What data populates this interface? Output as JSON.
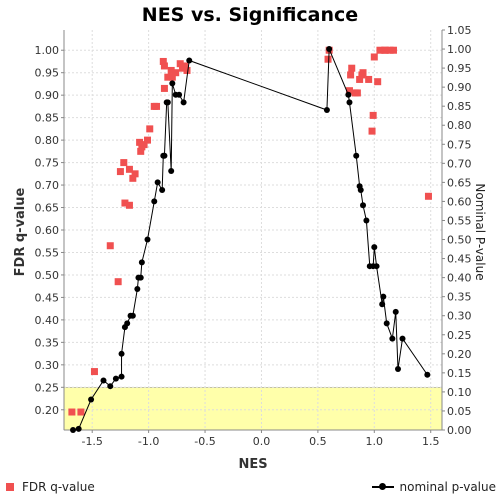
{
  "chart_data": {
    "type": "scatter",
    "title": "NES vs. Significance",
    "xlabel": "NES",
    "ylabel": "FDR q-value",
    "y2label": "Nominal P-value",
    "xlim": [
      -1.75,
      1.6
    ],
    "ylim": [
      0.155,
      1.045
    ],
    "y2lim": [
      0.0,
      1.05
    ],
    "grid": true,
    "legend_position": "bottom",
    "xticks": [
      "-1.5",
      "-1.0",
      "-0.5",
      "0.0",
      "0.5",
      "1.0",
      "1.5"
    ],
    "xtick_values": [
      -1.5,
      -1.0,
      -0.5,
      0.0,
      0.5,
      1.0,
      1.5
    ],
    "yticks": [
      "0.20",
      "0.25",
      "0.30",
      "0.35",
      "0.40",
      "0.45",
      "0.50",
      "0.55",
      "0.60",
      "0.65",
      "0.70",
      "0.75",
      "0.80",
      "0.85",
      "0.90",
      "0.95",
      "1.00"
    ],
    "ytick_values": [
      0.2,
      0.25,
      0.3,
      0.35,
      0.4,
      0.45,
      0.5,
      0.55,
      0.6,
      0.65,
      0.7,
      0.75,
      0.8,
      0.85,
      0.9,
      0.95,
      1.0
    ],
    "y2ticks": [
      "0.00",
      "0.05",
      "0.10",
      "0.15",
      "0.20",
      "0.25",
      "0.30",
      "0.35",
      "0.40",
      "0.45",
      "0.50",
      "0.55",
      "0.60",
      "0.65",
      "0.70",
      "0.75",
      "0.80",
      "0.85",
      "0.90",
      "0.95",
      "1.00",
      "1.05"
    ],
    "y2tick_values": [
      0.0,
      0.05,
      0.1,
      0.15,
      0.2,
      0.25,
      0.3,
      0.35,
      0.4,
      0.45,
      0.5,
      0.55,
      0.6,
      0.65,
      0.7,
      0.75,
      0.8,
      0.85,
      0.9,
      0.95,
      1.0,
      1.05
    ],
    "highlight_band": {
      "from": 0.155,
      "to": 0.25,
      "color": "#ffffaa"
    },
    "colors": {
      "fdr": "#f05050",
      "nominal": "#000000",
      "band": "#ffffaa",
      "grid": "#dddddd"
    },
    "series": [
      {
        "name": "FDR q-value",
        "axis": "left",
        "style": "squares",
        "points": [
          [
            -1.68,
            0.195
          ],
          [
            -1.6,
            0.195
          ],
          [
            -1.48,
            0.285
          ],
          [
            -1.34,
            0.565
          ],
          [
            -1.27,
            0.485
          ],
          [
            -1.25,
            0.73
          ],
          [
            -1.22,
            0.75
          ],
          [
            -1.21,
            0.66
          ],
          [
            -1.17,
            0.735
          ],
          [
            -1.17,
            0.655
          ],
          [
            -1.14,
            0.715
          ],
          [
            -1.12,
            0.725
          ],
          [
            -1.08,
            0.795
          ],
          [
            -1.07,
            0.775
          ],
          [
            -1.06,
            0.785
          ],
          [
            -1.04,
            0.79
          ],
          [
            -1.01,
            0.8
          ],
          [
            -0.99,
            0.825
          ],
          [
            -0.95,
            0.875
          ],
          [
            -0.93,
            0.875
          ],
          [
            -0.87,
            0.975
          ],
          [
            -0.86,
            0.965
          ],
          [
            -0.86,
            0.915
          ],
          [
            -0.83,
            0.94
          ],
          [
            -0.8,
            0.955
          ],
          [
            -0.79,
            0.94
          ],
          [
            -0.76,
            0.95
          ],
          [
            -0.72,
            0.97
          ],
          [
            -0.7,
            0.96
          ],
          [
            -0.68,
            0.965
          ],
          [
            -0.66,
            0.955
          ],
          [
            0.59,
            0.98
          ],
          [
            0.6,
            1.0
          ],
          [
            0.78,
            0.91
          ],
          [
            0.79,
            0.945
          ],
          [
            0.8,
            0.96
          ],
          [
            0.83,
            0.905
          ],
          [
            0.85,
            0.905
          ],
          [
            0.87,
            0.935
          ],
          [
            0.89,
            0.945
          ],
          [
            0.9,
            0.95
          ],
          [
            0.95,
            0.935
          ],
          [
            0.98,
            0.82
          ],
          [
            0.99,
            0.855
          ],
          [
            1.0,
            0.985
          ],
          [
            1.03,
            0.93
          ],
          [
            1.05,
            1.0
          ],
          [
            1.09,
            1.0
          ],
          [
            1.1,
            1.0
          ],
          [
            1.14,
            1.0
          ],
          [
            1.17,
            1.0
          ],
          [
            1.48,
            0.675
          ]
        ]
      },
      {
        "name": "nominal p-value",
        "axis": "right",
        "style": "line-markers",
        "points": [
          [
            -1.67,
            0.0
          ],
          [
            -1.62,
            0.003
          ],
          [
            -1.51,
            0.08
          ],
          [
            -1.4,
            0.13
          ],
          [
            -1.34,
            0.115
          ],
          [
            -1.29,
            0.135
          ],
          [
            -1.24,
            0.14
          ],
          [
            -1.24,
            0.2
          ],
          [
            -1.21,
            0.27
          ],
          [
            -1.19,
            0.28
          ],
          [
            -1.16,
            0.3
          ],
          [
            -1.14,
            0.3
          ],
          [
            -1.1,
            0.37
          ],
          [
            -1.09,
            0.4
          ],
          [
            -1.07,
            0.4
          ],
          [
            -1.06,
            0.44
          ],
          [
            -1.01,
            0.5
          ],
          [
            -0.95,
            0.6
          ],
          [
            -0.92,
            0.65
          ],
          [
            -0.88,
            0.63
          ],
          [
            -0.87,
            0.72
          ],
          [
            -0.86,
            0.72
          ],
          [
            -0.84,
            0.86
          ],
          [
            -0.83,
            0.86
          ],
          [
            -0.8,
            0.68
          ],
          [
            -0.79,
            0.91
          ],
          [
            -0.76,
            0.88
          ],
          [
            -0.73,
            0.88
          ],
          [
            -0.69,
            0.86
          ],
          [
            -0.64,
            0.97
          ],
          [
            0.58,
            0.84
          ],
          [
            0.6,
            1.0
          ],
          [
            0.77,
            0.88
          ],
          [
            0.78,
            0.86
          ],
          [
            0.84,
            0.72
          ],
          [
            0.87,
            0.64
          ],
          [
            0.88,
            0.63
          ],
          [
            0.9,
            0.59
          ],
          [
            0.93,
            0.55
          ],
          [
            0.96,
            0.43
          ],
          [
            0.99,
            0.43
          ],
          [
            1.0,
            0.48
          ],
          [
            1.02,
            0.43
          ],
          [
            1.07,
            0.33
          ],
          [
            1.08,
            0.35
          ],
          [
            1.11,
            0.28
          ],
          [
            1.16,
            0.24
          ],
          [
            1.19,
            0.31
          ],
          [
            1.21,
            0.16
          ],
          [
            1.25,
            0.24
          ],
          [
            1.47,
            0.145
          ]
        ]
      }
    ]
  }
}
